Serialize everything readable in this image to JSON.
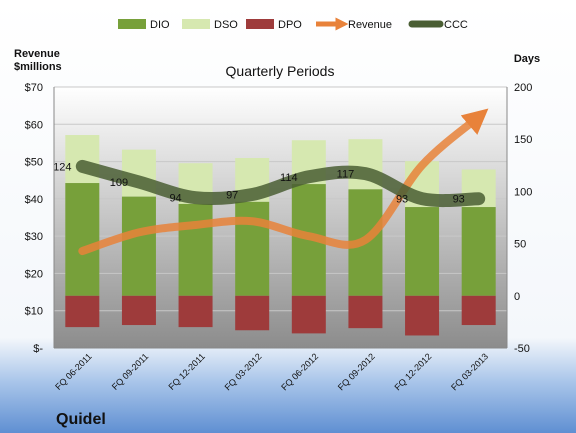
{
  "company": "Quidel",
  "chart_data": {
    "type": "bar",
    "title": "Quarterly Periods",
    "left_axis_label": "Revenue\n$millions",
    "right_axis_label": "Days",
    "categories": [
      "FQ 06-2011",
      "FQ 09-2011",
      "FQ 12-2011",
      "FQ 03-2012",
      "FQ 06-2012",
      "FQ 09-2012",
      "FQ 12-2012",
      "FQ 03-2013"
    ],
    "left_ticks": [
      "$-",
      "$10",
      "$20",
      "$30",
      "$40",
      "$50",
      "$60",
      "$70"
    ],
    "left_range": [
      0,
      70
    ],
    "right_ticks": [
      "-50",
      "0",
      "50",
      "100",
      "150",
      "200"
    ],
    "right_range": [
      -50,
      200
    ],
    "series": [
      {
        "name": "DIO",
        "kind": "bar",
        "axis": "right",
        "color": "#77a03a",
        "values": [
          108,
          95,
          88,
          90,
          107,
          102,
          85,
          85
        ]
      },
      {
        "name": "DSO",
        "kind": "bar",
        "axis": "right",
        "color": "#d6e8b0",
        "values": [
          46,
          45,
          39,
          42,
          42,
          48,
          44,
          36
        ]
      },
      {
        "name": "DPO",
        "kind": "bar",
        "axis": "right",
        "color": "#9e3b3b",
        "values": [
          -30,
          -28,
          -30,
          -33,
          -36,
          -31,
          -38,
          -28
        ]
      },
      {
        "name": "Revenue",
        "kind": "line",
        "axis": "left",
        "color": "#e8823a",
        "values": [
          26,
          31,
          33,
          34,
          30,
          29,
          49,
          62
        ]
      },
      {
        "name": "CCC",
        "kind": "line",
        "axis": "right",
        "color": "#4a5e34",
        "values": [
          124,
          109,
          94,
          97,
          114,
          117,
          93,
          93
        ]
      }
    ],
    "ccc_labels": [
      "124",
      "109",
      "94",
      "97",
      "114",
      "117",
      "93",
      "93"
    ]
  }
}
